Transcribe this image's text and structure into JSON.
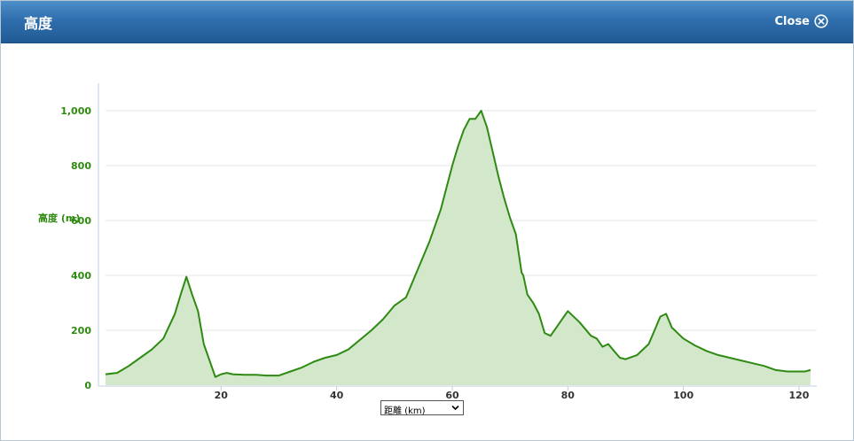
{
  "window": {
    "title": "高度",
    "close_label": "Close"
  },
  "x_selector": {
    "selected": "距離 (km)"
  },
  "colors": {
    "line": "#2e8a12",
    "fill": "#d3e7cb",
    "axis_text": "#2e8b10"
  },
  "chart_data": {
    "type": "area",
    "title": "",
    "ylabel": "高度 (m)",
    "xlabel": "距離 (km)",
    "xlim": [
      0,
      122
    ],
    "ylim": [
      0,
      1100
    ],
    "x_ticks": [
      20,
      40,
      60,
      80,
      100,
      120
    ],
    "x_tick_labels": [
      "20",
      "40",
      "60",
      "80",
      "100",
      "120"
    ],
    "y_ticks": [
      0,
      200,
      400,
      600,
      800,
      1000
    ],
    "y_tick_labels": [
      "0",
      "200",
      "400",
      "600",
      "800",
      "1,000"
    ],
    "grid": true,
    "legend": "none",
    "series": [
      {
        "x": [
          0,
          2,
          4,
          6,
          8,
          10,
          12,
          13,
          14,
          15,
          16,
          17,
          18,
          19,
          20,
          21,
          22,
          24,
          26,
          28,
          30,
          32,
          34,
          36,
          38,
          40,
          42,
          44,
          46,
          48,
          50,
          52,
          54,
          56,
          58,
          60,
          61,
          62,
          63,
          64,
          65,
          66,
          67,
          68,
          69,
          70,
          71,
          72,
          72.3,
          73,
          74,
          75,
          76,
          77,
          78,
          79,
          80,
          82,
          84,
          85,
          86,
          87,
          88,
          89,
          90,
          92,
          94,
          95,
          96,
          97,
          98,
          100,
          102,
          104,
          106,
          108,
          110,
          112,
          114,
          116,
          118,
          120,
          121,
          122
        ],
        "y": [
          40,
          45,
          70,
          100,
          130,
          170,
          260,
          330,
          395,
          330,
          270,
          150,
          90,
          30,
          40,
          45,
          40,
          38,
          38,
          35,
          35,
          50,
          65,
          85,
          100,
          110,
          130,
          165,
          200,
          240,
          290,
          320,
          420,
          520,
          640,
          800,
          870,
          930,
          970,
          970,
          1000,
          940,
          850,
          760,
          680,
          610,
          550,
          410,
          400,
          330,
          300,
          260,
          190,
          180,
          210,
          240,
          270,
          230,
          180,
          170,
          140,
          150,
          125,
          100,
          95,
          110,
          150,
          200,
          250,
          260,
          210,
          170,
          145,
          125,
          110,
          100,
          90,
          80,
          70,
          55,
          50,
          50,
          50,
          55
        ]
      }
    ]
  }
}
